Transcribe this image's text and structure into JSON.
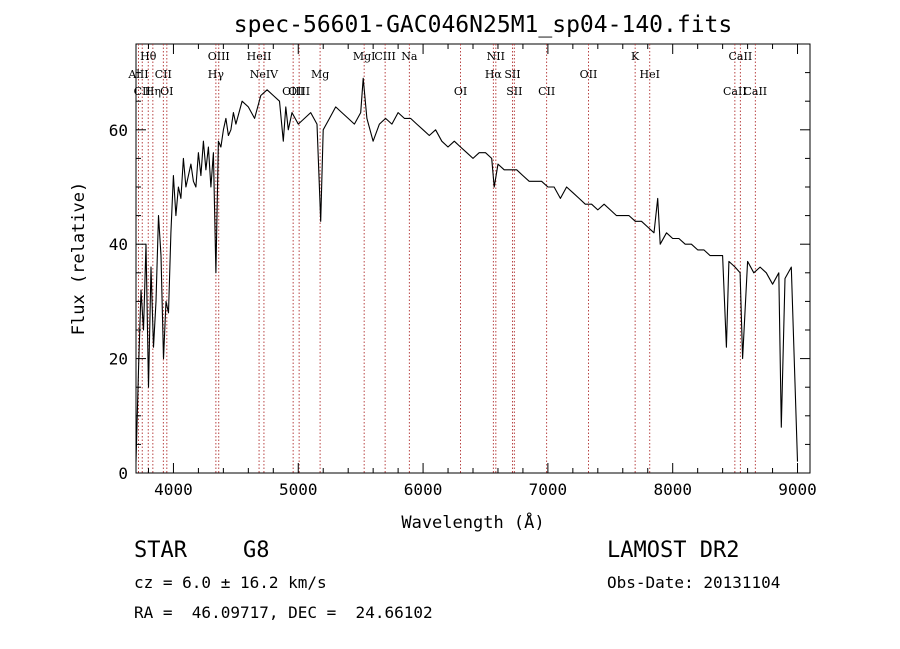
{
  "chart_data": {
    "type": "line",
    "title": "spec-56601-GAC046N25M1_sp04-140.fits",
    "xlabel": "Wavelength (Å)",
    "ylabel": "Flux (relative)",
    "xlim": [
      3700,
      9100
    ],
    "ylim": [
      0,
      75
    ],
    "x_ticks": [
      4000,
      5000,
      6000,
      7000,
      8000,
      9000
    ],
    "y_ticks": [
      0,
      20,
      40,
      60
    ],
    "grid": false,
    "series": [
      {
        "x": [
          3700,
          3720,
          3740,
          3760,
          3780,
          3800,
          3820,
          3840,
          3860,
          3880,
          3900,
          3920,
          3940,
          3960,
          3980,
          4000,
          4020,
          4040,
          4060,
          4080,
          4100,
          4120,
          4140,
          4160,
          4180,
          4200,
          4220,
          4240,
          4260,
          4280,
          4300,
          4320,
          4340,
          4360,
          4380,
          4400,
          4420,
          4440,
          4460,
          4480,
          4500,
          4550,
          4600,
          4650,
          4700,
          4750,
          4800,
          4850,
          4880,
          4900,
          4920,
          4950,
          5000,
          5050,
          5100,
          5150,
          5180,
          5200,
          5250,
          5300,
          5350,
          5400,
          5450,
          5500,
          5520,
          5550,
          5600,
          5650,
          5700,
          5750,
          5800,
          5850,
          5900,
          5950,
          6000,
          6050,
          6100,
          6150,
          6200,
          6250,
          6300,
          6350,
          6400,
          6450,
          6500,
          6550,
          6570,
          6600,
          6650,
          6700,
          6750,
          6800,
          6850,
          6900,
          6950,
          7000,
          7050,
          7100,
          7150,
          7200,
          7250,
          7300,
          7350,
          7400,
          7450,
          7500,
          7550,
          7600,
          7650,
          7700,
          7750,
          7800,
          7850,
          7880,
          7900,
          7950,
          8000,
          8050,
          8100,
          8150,
          8200,
          8250,
          8300,
          8350,
          8400,
          8430,
          8450,
          8500,
          8540,
          8560,
          8600,
          8650,
          8700,
          8750,
          8800,
          8850,
          8870,
          8900,
          8950,
          9000
        ],
        "y": [
          2,
          18,
          32,
          25,
          40,
          15,
          36,
          22,
          30,
          45,
          38,
          20,
          30,
          28,
          42,
          52,
          45,
          50,
          48,
          55,
          50,
          52,
          54,
          51,
          50,
          56,
          52,
          58,
          53,
          57,
          50,
          56,
          35,
          58,
          57,
          60,
          62,
          59,
          60,
          63,
          61,
          65,
          64,
          62,
          66,
          67,
          66,
          65,
          58,
          64,
          60,
          63,
          61,
          62,
          63,
          61,
          44,
          60,
          62,
          64,
          63,
          62,
          61,
          63,
          69,
          62,
          58,
          61,
          62,
          61,
          63,
          62,
          62,
          61,
          60,
          59,
          60,
          58,
          57,
          58,
          57,
          56,
          55,
          56,
          56,
          55,
          50,
          54,
          53,
          53,
          53,
          52,
          51,
          51,
          51,
          50,
          50,
          48,
          50,
          49,
          48,
          47,
          47,
          46,
          47,
          46,
          45,
          45,
          45,
          44,
          44,
          43,
          42,
          48,
          40,
          42,
          41,
          41,
          40,
          40,
          39,
          39,
          38,
          38,
          38,
          22,
          37,
          36,
          35,
          20,
          37,
          35,
          36,
          35,
          33,
          35,
          8,
          34,
          36,
          2
        ]
      }
    ],
    "line_marks": [
      {
        "label": "Hθ",
        "x": 3798,
        "row": 1
      },
      {
        "label": "AlII",
        "x": 3720,
        "row": 2
      },
      {
        "label": "CII",
        "x": 3750,
        "row": 3
      },
      {
        "label": "Hη",
        "x": 3835,
        "row": 3
      },
      {
        "label": "CII",
        "x": 3919,
        "row": 2
      },
      {
        "label": "OI",
        "x": 3947,
        "row": 3
      },
      {
        "label": "Hγ",
        "x": 4340,
        "row": 2
      },
      {
        "label": "OIII",
        "x": 4363,
        "row": 1
      },
      {
        "label": "HeII",
        "x": 4686,
        "row": 1
      },
      {
        "label": "NeIV",
        "x": 4725,
        "row": 2
      },
      {
        "label": "OIII",
        "x": 4959,
        "row": 3
      },
      {
        "label": "OIII",
        "x": 5007,
        "row": 3
      },
      {
        "label": "Mg",
        "x": 5175,
        "row": 2
      },
      {
        "label": "MgI",
        "x": 5528,
        "row": 1
      },
      {
        "label": "CIII",
        "x": 5696,
        "row": 1
      },
      {
        "label": "Na",
        "x": 5890,
        "row": 1
      },
      {
        "label": "OI",
        "x": 6300,
        "row": 3
      },
      {
        "label": "NII",
        "x": 6583,
        "row": 1
      },
      {
        "label": "Hα",
        "x": 6563,
        "row": 2
      },
      {
        "label": "SII",
        "x": 6716,
        "row": 2
      },
      {
        "label": "SII",
        "x": 6731,
        "row": 3
      },
      {
        "label": "CII",
        "x": 6990,
        "row": 3
      },
      {
        "label": "OII",
        "x": 7325,
        "row": 2
      },
      {
        "label": "K",
        "x": 7699,
        "row": 1
      },
      {
        "label": "HeI",
        "x": 7816,
        "row": 2
      },
      {
        "label": "CaII",
        "x": 8542,
        "row": 1
      },
      {
        "label": "CaII",
        "x": 8498,
        "row": 3
      },
      {
        "label": "CaII",
        "x": 8662,
        "row": 3
      }
    ]
  },
  "info": {
    "object_type": "STAR",
    "subclass": "G8",
    "survey": "LAMOST DR2",
    "cz": "cz = 6.0 ± 16.2 km/s",
    "obs_date": "Obs-Date: 20131104",
    "coords": "RA =  46.09717, DEC =  24.66102"
  }
}
